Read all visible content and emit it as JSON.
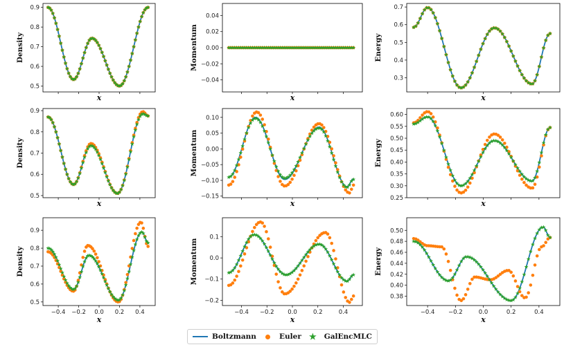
{
  "legend": {
    "boltzmann": "Boltzmann",
    "euler": "Euler",
    "galenc": "GalEncMLC"
  },
  "colors": {
    "boltzmann": "#1f77b4",
    "euler": "#ff7f0e",
    "galenc": "#2ca02c"
  },
  "xlabel": "x",
  "chart_data": [
    {
      "type": "scatter",
      "title": "",
      "xlabel": "x",
      "ylabel": "Density",
      "xlim": [
        -0.55,
        0.55
      ],
      "ylim": [
        0.47,
        0.92
      ],
      "yticks": [
        0.5,
        0.6,
        0.7,
        0.8,
        0.9
      ],
      "ytick_labels": [
        "0.5",
        "0.6",
        "0.7",
        "0.8",
        "0.9"
      ],
      "xtick_labels_shown": false,
      "curve_anchors": {
        "x": [
          -0.5,
          -0.25,
          -0.07,
          0.2,
          0.48
        ],
        "y": [
          0.9,
          0.533,
          0.743,
          0.5,
          0.9
        ]
      },
      "euler_anchors": {
        "x": [
          -0.5,
          -0.25,
          -0.07,
          0.2,
          0.48
        ],
        "y": [
          0.9,
          0.533,
          0.743,
          0.5,
          0.9
        ]
      },
      "galenc_anchors": {
        "x": [
          -0.5,
          -0.25,
          -0.07,
          0.2,
          0.48
        ],
        "y": [
          0.9,
          0.533,
          0.743,
          0.5,
          0.9
        ]
      }
    },
    {
      "type": "scatter",
      "title": "",
      "xlabel": "x",
      "ylabel": "Momentum",
      "xlim": [
        -0.55,
        0.55
      ],
      "ylim": [
        -0.055,
        0.055
      ],
      "yticks": [
        -0.04,
        -0.02,
        0.0,
        0.02,
        0.04
      ],
      "ytick_labels": [
        "−0.04",
        "−0.02",
        "0.00",
        "0.02",
        "0.04"
      ],
      "xtick_labels_shown": false,
      "curve_anchors": {
        "x": [
          -0.5,
          0.48
        ],
        "y": [
          0.0,
          0.0
        ]
      },
      "euler_anchors": {
        "x": [
          -0.5,
          0.48
        ],
        "y": [
          0.0,
          0.0
        ]
      },
      "galenc_anchors": {
        "x": [
          -0.5,
          0.48
        ],
        "y": [
          0.0,
          0.0
        ]
      }
    },
    {
      "type": "scatter",
      "title": "",
      "xlabel": "x",
      "ylabel": "Energy",
      "xlim": [
        -0.55,
        0.55
      ],
      "ylim": [
        0.22,
        0.72
      ],
      "yticks": [
        0.3,
        0.4,
        0.5,
        0.6,
        0.7
      ],
      "ytick_labels": [
        "0.3",
        "0.4",
        "0.5",
        "0.6",
        "0.7"
      ],
      "xtick_labels_shown": false,
      "curve_anchors": {
        "x": [
          -0.5,
          -0.4,
          -0.16,
          0.08,
          0.35,
          0.48
        ],
        "y": [
          0.585,
          0.697,
          0.243,
          0.582,
          0.265,
          0.55
        ]
      },
      "euler_anchors": {
        "x": [
          -0.5,
          -0.4,
          -0.16,
          0.08,
          0.35,
          0.48
        ],
        "y": [
          0.585,
          0.697,
          0.243,
          0.582,
          0.265,
          0.55
        ]
      },
      "galenc_anchors": {
        "x": [
          -0.5,
          -0.4,
          -0.16,
          0.08,
          0.35,
          0.48
        ],
        "y": [
          0.585,
          0.697,
          0.243,
          0.582,
          0.265,
          0.55
        ]
      }
    },
    {
      "type": "scatter",
      "title": "",
      "xlabel": "x",
      "ylabel": "Density",
      "xlim": [
        -0.55,
        0.55
      ],
      "ylim": [
        0.49,
        0.91
      ],
      "yticks": [
        0.5,
        0.6,
        0.7,
        0.8,
        0.9
      ],
      "ytick_labels": [
        "0.5",
        "0.6",
        "0.7",
        "0.8",
        "0.9"
      ],
      "xtick_labels_shown": false,
      "curve_anchors": {
        "x": [
          -0.5,
          -0.25,
          -0.08,
          0.18,
          0.43,
          0.48
        ],
        "y": [
          0.87,
          0.552,
          0.74,
          0.51,
          0.888,
          0.875
        ]
      },
      "euler_anchors": {
        "x": [
          -0.5,
          -0.25,
          -0.08,
          0.18,
          0.43,
          0.48
        ],
        "y": [
          0.87,
          0.552,
          0.745,
          0.51,
          0.895,
          0.875
        ]
      },
      "galenc_anchors": {
        "x": [
          -0.5,
          -0.25,
          -0.08,
          0.18,
          0.43,
          0.48
        ],
        "y": [
          0.87,
          0.552,
          0.735,
          0.51,
          0.885,
          0.875
        ]
      }
    },
    {
      "type": "scatter",
      "title": "",
      "xlabel": "x",
      "ylabel": "Momentum",
      "xlim": [
        -0.55,
        0.55
      ],
      "ylim": [
        -0.155,
        0.128
      ],
      "yticks": [
        -0.15,
        -0.1,
        -0.05,
        0.0,
        0.05,
        0.1
      ],
      "ytick_labels": [
        "−0.15",
        "−0.10",
        "−0.05",
        "0.00",
        "0.05",
        "0.10"
      ],
      "xtick_labels_shown": false,
      "curve_anchors": {
        "x": [
          -0.5,
          -0.29,
          -0.06,
          0.21,
          0.43,
          0.48
        ],
        "y": [
          -0.09,
          0.1,
          -0.097,
          0.069,
          -0.12,
          -0.095
        ]
      },
      "euler_anchors": {
        "x": [
          -0.5,
          -0.28,
          -0.06,
          0.21,
          0.45,
          0.48
        ],
        "y": [
          -0.115,
          0.117,
          -0.118,
          0.08,
          -0.14,
          -0.115
        ]
      },
      "galenc_anchors": {
        "x": [
          -0.5,
          -0.29,
          -0.06,
          0.21,
          0.43,
          0.48
        ],
        "y": [
          -0.09,
          0.097,
          -0.093,
          0.066,
          -0.122,
          -0.097
        ]
      }
    },
    {
      "type": "scatter",
      "title": "",
      "xlabel": "x",
      "ylabel": "Energy",
      "xlim": [
        -0.55,
        0.55
      ],
      "ylim": [
        0.25,
        0.625
      ],
      "yticks": [
        0.25,
        0.3,
        0.35,
        0.4,
        0.45,
        0.5,
        0.55,
        0.6
      ],
      "ytick_labels": [
        "0.25",
        "0.30",
        "0.35",
        "0.40",
        "0.45",
        "0.50",
        "0.55",
        "0.60"
      ],
      "xtick_labels_shown": false,
      "curve_anchors": {
        "x": [
          -0.5,
          -0.4,
          -0.16,
          0.08,
          0.35,
          0.48
        ],
        "y": [
          0.56,
          0.59,
          0.3,
          0.49,
          0.32,
          0.545
        ]
      },
      "euler_anchors": {
        "x": [
          -0.5,
          -0.4,
          -0.16,
          0.08,
          0.35,
          0.48
        ],
        "y": [
          0.565,
          0.612,
          0.27,
          0.518,
          0.29,
          0.545
        ]
      },
      "galenc_anchors": {
        "x": [
          -0.5,
          -0.4,
          -0.16,
          0.08,
          0.35,
          0.48
        ],
        "y": [
          0.56,
          0.59,
          0.3,
          0.49,
          0.32,
          0.545
        ]
      }
    },
    {
      "type": "scatter",
      "title": "",
      "xlabel": "x",
      "ylabel": "Density",
      "xlim": [
        -0.55,
        0.55
      ],
      "ylim": [
        0.48,
        0.97
      ],
      "xticks": [
        -0.4,
        -0.2,
        0.0,
        0.2,
        0.4
      ],
      "xtick_labels": [
        "−0.4",
        "−0.2",
        "0.0",
        "0.2",
        "0.4"
      ],
      "yticks": [
        0.5,
        0.6,
        0.7,
        0.8,
        0.9
      ],
      "ytick_labels": [
        "0.5",
        "0.6",
        "0.7",
        "0.8",
        "0.9"
      ],
      "xtick_labels_shown": true,
      "curve_anchors": {
        "x": [
          -0.5,
          -0.25,
          -0.1,
          0.19,
          0.42,
          0.48
        ],
        "y": [
          0.8,
          0.57,
          0.76,
          0.51,
          0.89,
          0.83
        ]
      },
      "euler_anchors": {
        "x": [
          -0.5,
          -0.25,
          -0.11,
          0.19,
          0.41,
          0.48
        ],
        "y": [
          0.78,
          0.56,
          0.815,
          0.5,
          0.945,
          0.81
        ]
      },
      "galenc_anchors": {
        "x": [
          -0.5,
          -0.25,
          -0.1,
          0.19,
          0.42,
          0.48
        ],
        "y": [
          0.8,
          0.57,
          0.76,
          0.51,
          0.89,
          0.83
        ]
      }
    },
    {
      "type": "scatter",
      "title": "",
      "xlabel": "x",
      "ylabel": "Momentum",
      "xlim": [
        -0.55,
        0.55
      ],
      "ylim": [
        -0.225,
        0.19
      ],
      "xticks": [
        -0.4,
        -0.2,
        0.0,
        0.2,
        0.4
      ],
      "xtick_labels": [
        "−0.4",
        "−0.2",
        "0.0",
        "0.2",
        "0.4"
      ],
      "yticks": [
        -0.2,
        -0.1,
        0.0,
        0.1
      ],
      "ytick_labels": [
        "−0.2",
        "−0.1",
        "0.0",
        "0.1"
      ],
      "xtick_labels_shown": true,
      "curve_anchors": {
        "x": [
          -0.5,
          -0.3,
          -0.05,
          0.21,
          0.43,
          0.48
        ],
        "y": [
          -0.07,
          0.11,
          -0.08,
          0.065,
          -0.11,
          -0.08
        ]
      },
      "euler_anchors": {
        "x": [
          -0.5,
          -0.25,
          -0.06,
          0.26,
          0.45,
          0.48
        ],
        "y": [
          -0.13,
          0.17,
          -0.17,
          0.12,
          -0.21,
          -0.18
        ]
      },
      "galenc_anchors": {
        "x": [
          -0.5,
          -0.3,
          -0.05,
          0.21,
          0.43,
          0.48
        ],
        "y": [
          -0.07,
          0.11,
          -0.08,
          0.065,
          -0.11,
          -0.08
        ]
      }
    },
    {
      "type": "scatter",
      "title": "",
      "xlabel": "x",
      "ylabel": "Energy",
      "xlim": [
        -0.55,
        0.55
      ],
      "ylim": [
        0.363,
        0.523
      ],
      "xticks": [
        -0.4,
        -0.2,
        0.0,
        0.2,
        0.4
      ],
      "xtick_labels": [
        "−0.4",
        "−0.2",
        "0.0",
        "0.2",
        "0.4"
      ],
      "yticks": [
        0.38,
        0.4,
        0.42,
        0.44,
        0.46,
        0.48,
        0.5
      ],
      "ytick_labels": [
        "0.38",
        "0.40",
        "0.42",
        "0.44",
        "0.46",
        "0.48",
        "0.50"
      ],
      "xtick_labels_shown": true,
      "curve_anchors": {
        "x": [
          -0.5,
          -0.25,
          -0.12,
          0.2,
          0.43,
          0.48
        ],
        "y": [
          0.48,
          0.408,
          0.452,
          0.372,
          0.506,
          0.487
        ]
      },
      "euler_anchors": {
        "x": [
          -0.5,
          -0.4,
          -0.3,
          -0.16,
          -0.06,
          0.05,
          0.18,
          0.3,
          0.42,
          0.48
        ],
        "y": [
          0.485,
          0.472,
          0.47,
          0.372,
          0.415,
          0.41,
          0.427,
          0.377,
          0.47,
          0.487
        ]
      },
      "galenc_anchors": {
        "x": [
          -0.5,
          -0.25,
          -0.12,
          0.2,
          0.43,
          0.48
        ],
        "y": [
          0.48,
          0.408,
          0.452,
          0.372,
          0.506,
          0.487
        ]
      }
    }
  ]
}
